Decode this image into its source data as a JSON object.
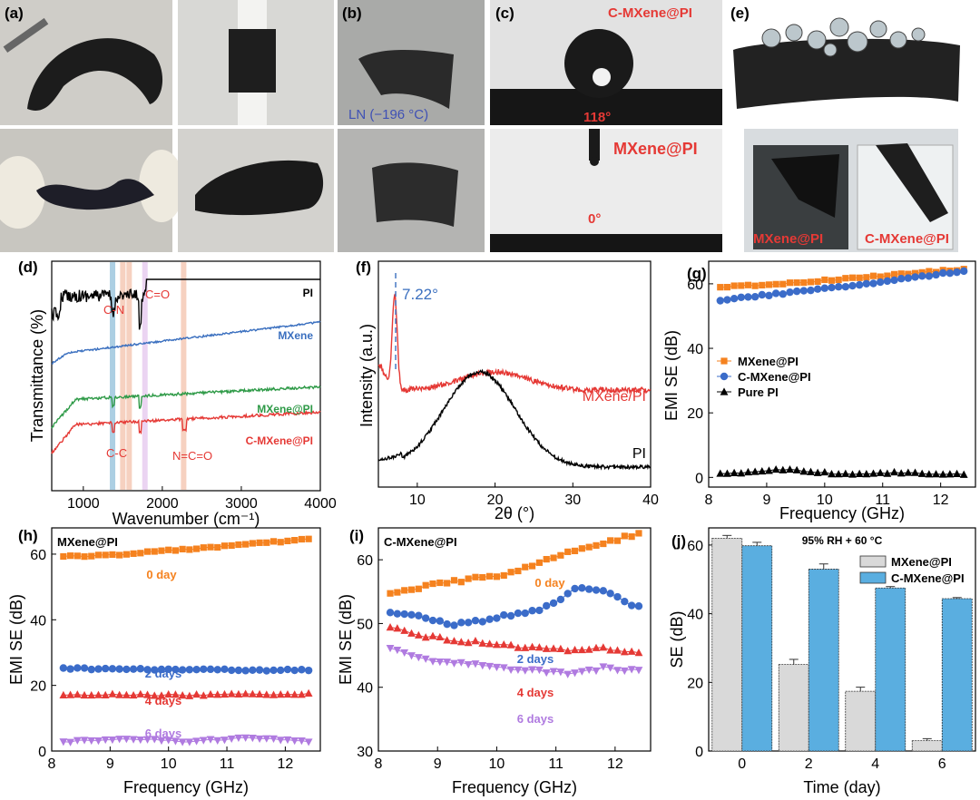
{
  "panels": {
    "a": {
      "label": "(a)"
    },
    "b": {
      "label": "(b)",
      "caption": "LN (−196 °C)"
    },
    "c": {
      "label": "(c)",
      "top_sample": "C-MXene@PI",
      "top_angle": "118°",
      "bottom_sample": "MXene@PI",
      "bottom_angle": "0°"
    },
    "e": {
      "label": "(e)",
      "left_sample": "MXene@PI",
      "right_sample": "C-MXene@PI"
    }
  },
  "colors": {
    "pi": "#000000",
    "mxene": "#3a6fbf",
    "mxene_pi": "#2e9a47",
    "c_mxene_pi": "#e53935",
    "orange": "#f5821f",
    "blue_marker": "#3b6cc9",
    "red_marker": "#e53935",
    "purple_marker": "#b07be0",
    "bar_gray": "#d9d9d9",
    "bar_blue": "#5aaee0"
  },
  "chart_data": [
    {
      "id": "d",
      "label": "(d)",
      "type": "line",
      "xlabel": "Wavenumber (cm⁻¹)",
      "ylabel": "Transmittance (%)",
      "xlim": [
        600,
        4000
      ],
      "xticks": [
        1000,
        2000,
        3000,
        4000
      ],
      "series": [
        {
          "name": "PI",
          "color_key": "pi"
        },
        {
          "name": "MXene",
          "color_key": "mxene"
        },
        {
          "name": "MXene@PI",
          "color_key": "mxene_pi"
        },
        {
          "name": "C-MXene@PI",
          "color_key": "c_mxene_pi"
        }
      ],
      "annotations": [
        "C-N",
        "C=O",
        "C-C",
        "N=C=O"
      ],
      "highlight_bands": [
        1370,
        1500,
        1580,
        1780,
        2270
      ]
    },
    {
      "id": "f",
      "label": "(f)",
      "type": "line",
      "xlabel": "2θ (°)",
      "ylabel": "Intensity (a.u.)",
      "xlim": [
        5,
        40
      ],
      "xticks": [
        10,
        20,
        30,
        40
      ],
      "series": [
        {
          "name": "MXene/PI"
        },
        {
          "name": "PI"
        }
      ],
      "peak_label": "7.22°",
      "peak_x": 7.22
    },
    {
      "id": "g",
      "label": "(g)",
      "type": "line",
      "xlabel": "Frequency (GHz)",
      "ylabel": "EMI SE (dB)",
      "xlim": [
        8,
        12.6
      ],
      "ylim": [
        -3,
        67
      ],
      "xticks": [
        8,
        9,
        10,
        11,
        12
      ],
      "yticks": [
        0,
        20,
        40,
        60
      ],
      "x_start": 8.2,
      "x_end": 12.4,
      "points": 36,
      "series": [
        {
          "name": "MXene@PI",
          "marker": "square",
          "color_key": "orange",
          "values": [
            59.0,
            60.0,
            61.5,
            63.0,
            64.5
          ]
        },
        {
          "name": "C-MXene@PI",
          "marker": "circle",
          "color_key": "blue_marker",
          "values": [
            55.0,
            57.0,
            59.0,
            61.5,
            64.0
          ]
        },
        {
          "name": "Pure PI",
          "marker": "triangle",
          "color_key": "pi",
          "values": [
            1.0,
            2.5,
            1.0,
            1.5,
            0.8
          ]
        }
      ]
    },
    {
      "id": "h",
      "label": "(h)",
      "title": "MXene@PI",
      "type": "line",
      "xlabel": "Frequency (GHz)",
      "ylabel": "EMI SE (dB)",
      "xlim": [
        8,
        12.6
      ],
      "ylim": [
        0,
        68
      ],
      "xticks": [
        8,
        9,
        10,
        11,
        12
      ],
      "yticks": [
        0,
        20,
        40,
        60
      ],
      "x_start": 8.2,
      "x_end": 12.4,
      "points": 36,
      "series": [
        {
          "name": "0 day",
          "marker": "square",
          "color_key": "orange",
          "values": [
            59.2,
            60.0,
            61.5,
            63.0,
            64.5
          ]
        },
        {
          "name": "2 days",
          "marker": "circle",
          "color_key": "blue_marker",
          "values": [
            25.2,
            24.9,
            24.8,
            24.7,
            24.6
          ]
        },
        {
          "name": "4 days",
          "marker": "triangle",
          "color_key": "red_marker",
          "values": [
            17.0,
            17.2,
            17.0,
            17.3,
            17.4
          ]
        },
        {
          "name": "6 days",
          "marker": "triangle-down",
          "color_key": "purple_marker",
          "values": [
            2.8,
            3.8,
            2.9,
            4.0,
            3.0
          ]
        }
      ]
    },
    {
      "id": "i",
      "label": "(i)",
      "title": "C-MXene@PI",
      "type": "line",
      "xlabel": "Frequency (GHz)",
      "ylabel": "EMI SE (dB)",
      "xlim": [
        8,
        12.6
      ],
      "ylim": [
        30,
        65
      ],
      "xticks": [
        8,
        9,
        10,
        11,
        12
      ],
      "yticks": [
        30,
        40,
        50,
        60
      ],
      "x_start": 8.2,
      "x_end": 12.4,
      "points": 36,
      "series": [
        {
          "name": "0 day",
          "marker": "square",
          "color_key": "orange",
          "values": [
            54.8,
            56.0,
            57.0,
            58.0,
            60.5,
            62.5,
            64.0
          ]
        },
        {
          "name": "2 days",
          "marker": "circle",
          "color_key": "blue_marker",
          "values": [
            51.5,
            51.0,
            49.8,
            50.5,
            51.5,
            52.5,
            55.5,
            55.0,
            52.5
          ]
        },
        {
          "name": "4 days",
          "marker": "triangle",
          "color_key": "red_marker",
          "values": [
            49.5,
            48.0,
            47.2,
            46.8,
            46.2,
            45.8,
            46.0,
            45.3
          ]
        },
        {
          "name": "6 days",
          "marker": "triangle-down",
          "color_key": "purple_marker",
          "values": [
            46.3,
            44.3,
            43.8,
            43.2,
            42.6,
            42.2,
            43.0,
            42.5
          ]
        }
      ]
    },
    {
      "id": "j",
      "label": "(j)",
      "title": "95% RH + 60 °C",
      "type": "bar",
      "xlabel": "Time (day)",
      "ylabel": "SE (dB)",
      "ylim": [
        0,
        65
      ],
      "yticks": [
        0,
        20,
        40,
        60
      ],
      "categories": [
        "0",
        "2",
        "4",
        "6"
      ],
      "series": [
        {
          "name": "MXene@PI",
          "color_key": "bar_gray",
          "values": [
            62.0,
            25.2,
            17.4,
            3.0
          ],
          "errors": [
            0.8,
            1.5,
            1.2,
            0.6
          ]
        },
        {
          "name": "C-MXene@PI",
          "color_key": "bar_blue",
          "values": [
            59.8,
            53.0,
            47.5,
            44.4
          ],
          "errors": [
            1.0,
            1.5,
            0.4,
            0.3
          ]
        }
      ]
    }
  ]
}
